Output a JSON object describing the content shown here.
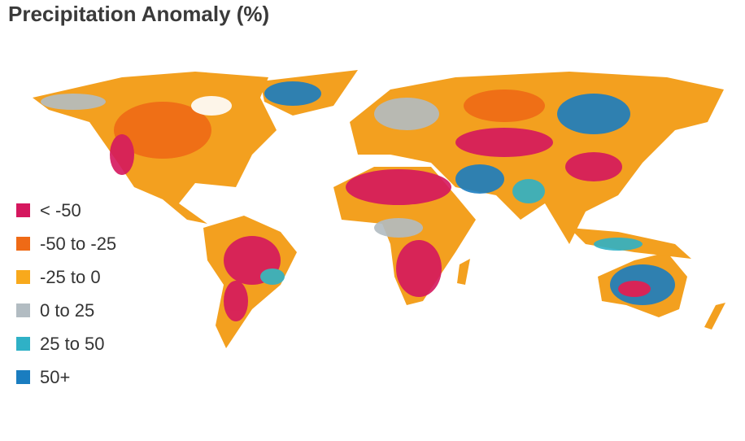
{
  "title": "Precipitation Anomaly (%)",
  "legend": [
    {
      "label": "< -50",
      "color": "#d5175e"
    },
    {
      "label": "-50 to -25",
      "color": "#ef6a16"
    },
    {
      "label": "-25 to 0",
      "color": "#f8a91c"
    },
    {
      "label": "0 to 25",
      "color": "#b2bcc2"
    },
    {
      "label": "25 to 50",
      "color": "#2fb1c6"
    },
    {
      "label": "50+",
      "color": "#1a7dc0"
    }
  ]
}
